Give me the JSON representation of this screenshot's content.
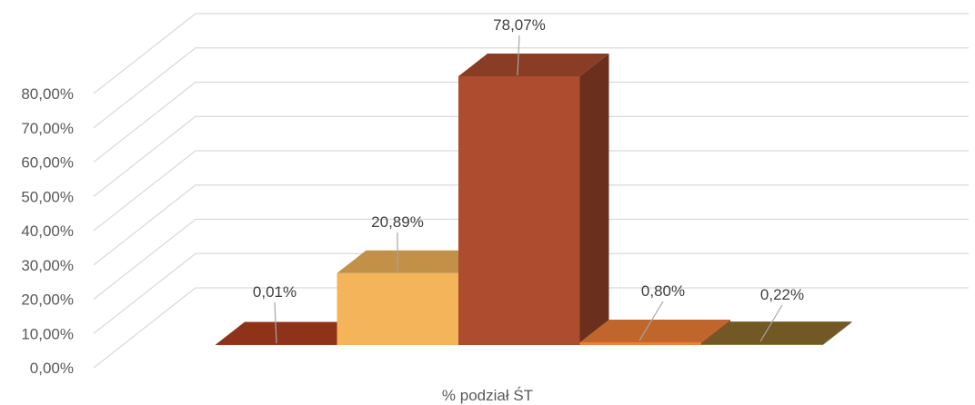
{
  "chart_data": {
    "type": "bar",
    "style": "3d-column",
    "xlabel": "% podział ŚT",
    "ylim": [
      0,
      0.8
    ],
    "yticks": [
      "0,00%",
      "10,00%",
      "20,00%",
      "30,00%",
      "40,00%",
      "50,00%",
      "60,00%",
      "70,00%",
      "80,00%"
    ],
    "grid": true,
    "legend": "none",
    "series": [
      {
        "name": "",
        "value": 0.0001,
        "label": "0,01%",
        "color": "#B23F1F"
      },
      {
        "name": "",
        "value": 0.2089,
        "label": "20,89%",
        "color": "#F4B459"
      },
      {
        "name": "",
        "value": 0.7807,
        "label": "78,07%",
        "color": "#AD4C2E"
      },
      {
        "name": "",
        "value": 0.008,
        "label": "0,80%",
        "color": "#F08038"
      },
      {
        "name": "",
        "value": 0.0022,
        "label": "0,22%",
        "color": "#8E6E2E"
      }
    ]
  }
}
